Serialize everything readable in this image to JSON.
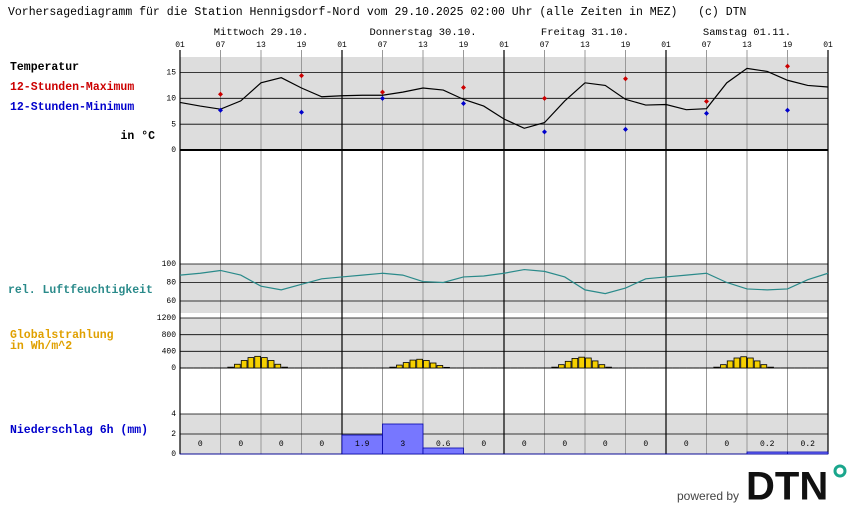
{
  "header": {
    "title": "Vorhersagediagramm für die Station Hennigsdorf-Nord vom 29.10.2025 02:00 Uhr (alle Zeiten in MEZ)   (c) DTN"
  },
  "time_axis": {
    "days": [
      "Mittwoch 29.10.",
      "Donnerstag 30.10.",
      "Freitag 31.10.",
      "Samstag 01.11."
    ],
    "hours": [
      "01",
      "07",
      "13",
      "19",
      "01",
      "07",
      "13",
      "19",
      "01",
      "07",
      "13",
      "19",
      "01",
      "07",
      "13",
      "19",
      "01"
    ]
  },
  "chart_data": [
    {
      "type": "line",
      "ylabel": "in °C",
      "ylim": [
        0,
        18
      ],
      "yticks": [
        0,
        5,
        10,
        15
      ],
      "grid": true,
      "series": [
        {
          "name": "Temperatur",
          "color": "#000000",
          "mode": "line",
          "values": [
            9.2,
            8.5,
            7.9,
            9.5,
            13.0,
            14.0,
            12.0,
            10.3,
            10.5,
            10.6,
            10.6,
            11.2,
            12.0,
            11.6,
            9.8,
            8.5,
            6.0,
            4.2,
            5.3,
            9.5,
            13.0,
            12.5,
            9.8,
            8.7,
            8.8,
            7.8,
            8.0,
            13.0,
            15.8,
            15.2,
            13.5,
            12.5,
            12.2
          ]
        },
        {
          "name": "12-Stunden-Maximum",
          "color": "#cc0000",
          "mode": "points",
          "values": [
            10.8,
            14.4,
            11.2,
            12.1,
            10.0,
            13.8,
            9.4,
            16.2
          ]
        },
        {
          "name": "12-Stunden-Minimum",
          "color": "#0000cc",
          "mode": "points",
          "values": [
            7.7,
            7.3,
            10.0,
            9.0,
            3.5,
            4.0,
            7.1,
            7.7
          ]
        }
      ]
    },
    {
      "type": "line",
      "ylim": [
        47,
        100
      ],
      "yticks": [
        60,
        80,
        100
      ],
      "grid": true,
      "series": [
        {
          "name": "rel. Luftfeuchtigkeit",
          "color": "#2a8a8a",
          "mode": "line",
          "values": [
            88,
            90,
            93,
            88,
            76,
            72,
            78,
            84,
            86,
            88,
            90,
            88,
            81,
            80,
            86,
            87,
            90,
            94,
            92,
            86,
            72,
            68,
            74,
            84,
            86,
            88,
            90,
            80,
            73,
            72,
            73,
            83,
            90
          ]
        }
      ]
    },
    {
      "type": "bar",
      "title": [
        "Globalstrahlung",
        "in Wh/m^2"
      ],
      "color": "#f5d000",
      "title_color": "#e0a000",
      "ylim": [
        0,
        1200
      ],
      "yticks": [
        0,
        400,
        800,
        1200
      ],
      "grid": true,
      "values": [
        0,
        0,
        0,
        0,
        0,
        0,
        0,
        20,
        90,
        180,
        250,
        280,
        250,
        180,
        90,
        20,
        0,
        0,
        0,
        0,
        0,
        0,
        0,
        0,
        0,
        0,
        0,
        0,
        0,
        0,
        0,
        20,
        70,
        130,
        190,
        210,
        180,
        120,
        60,
        15,
        0,
        0,
        0,
        0,
        0,
        0,
        0,
        0,
        0,
        0,
        0,
        0,
        0,
        0,
        0,
        20,
        80,
        160,
        230,
        260,
        240,
        170,
        80,
        20,
        0,
        0,
        0,
        0,
        0,
        0,
        0,
        0,
        0,
        0,
        0,
        0,
        0,
        0,
        0,
        20,
        80,
        170,
        240,
        270,
        240,
        170,
        80,
        20,
        0,
        0,
        0,
        0,
        0,
        0,
        0,
        0
      ]
    },
    {
      "type": "bar",
      "title": [
        "Niederschlag 6h (mm)"
      ],
      "color": "#7777ff",
      "title_color": "#0000cc",
      "ylim": [
        0,
        4
      ],
      "yticks": [
        0,
        2,
        4
      ],
      "grid": true,
      "show_values": true,
      "values": [
        0,
        0,
        0,
        0,
        1.9,
        3,
        0.6,
        0,
        0,
        0,
        0,
        0,
        0,
        0,
        0.2,
        0.2
      ]
    }
  ],
  "footer": {
    "powered": "powered by",
    "brand": "DTN"
  }
}
